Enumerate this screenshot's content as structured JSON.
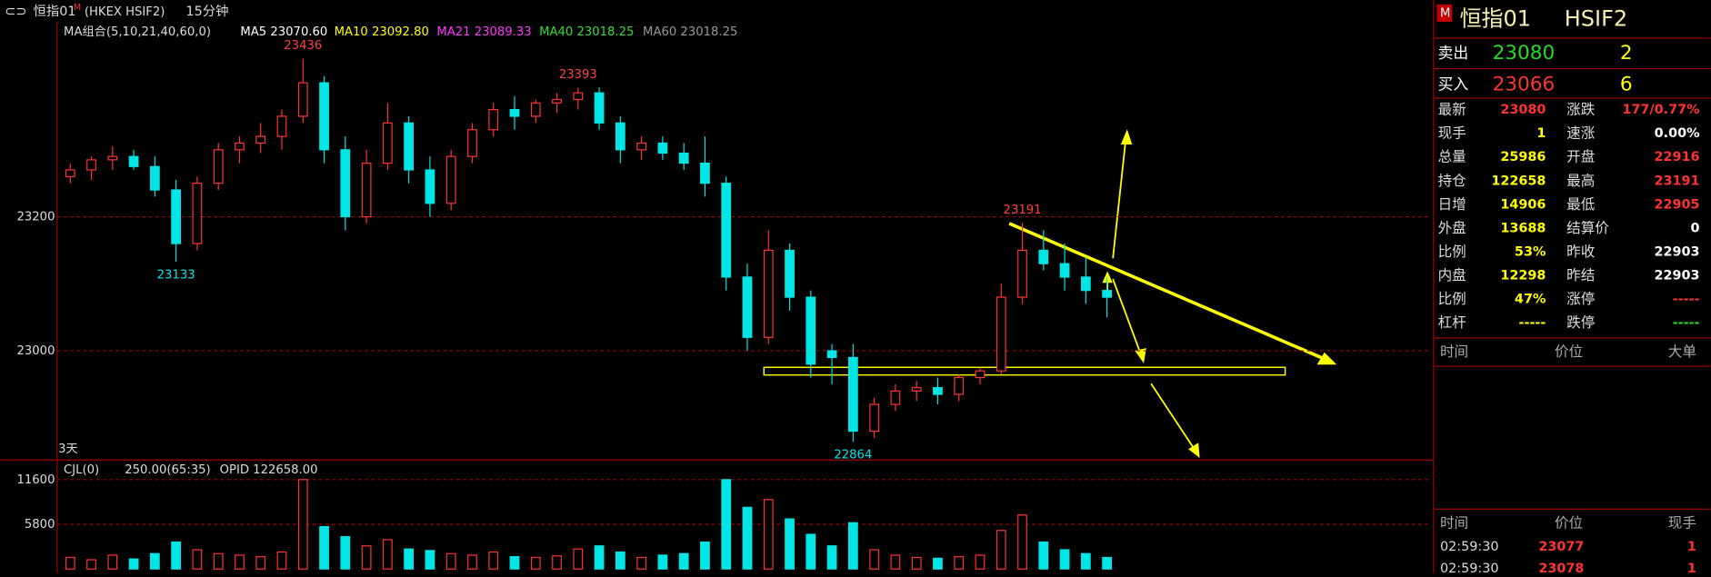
{
  "toolbar": {
    "symbol": "恒指01",
    "flag": "M",
    "exchange": "(HKEX HSIF2)",
    "period": "15分钟"
  },
  "span_label": "3天",
  "chart_data": [
    {
      "type": "candlestick",
      "up_color": "#ff3232",
      "down_color": "#00e5e5",
      "grid": true,
      "ylim": [
        22837,
        23491
      ],
      "yticks": [
        23000,
        23200
      ],
      "legend": [
        {
          "text": "MA组合(5,10,21,40,60,0)",
          "color": "#dddddd"
        },
        {
          "text": "MA5 23070.60",
          "color": "#ffffff"
        },
        {
          "text": "MA10 23092.80",
          "color": "#ffff00"
        },
        {
          "text": "MA21 23089.33",
          "color": "#ff33ff"
        },
        {
          "text": "MA40 23018.25",
          "color": "#33dd33"
        },
        {
          "text": "MA60 23018.25",
          "color": "#999999"
        }
      ],
      "high_labels": [
        23436,
        23393,
        23191
      ],
      "low_labels": [
        23133,
        22864
      ],
      "candles": [
        [
          23260,
          23280,
          23250,
          23270
        ],
        [
          23270,
          23290,
          23255,
          23285
        ],
        [
          23285,
          23305,
          23270,
          23290
        ],
        [
          23290,
          23300,
          23270,
          23275
        ],
        [
          23275,
          23290,
          23230,
          23240
        ],
        [
          23240,
          23255,
          23133,
          23160
        ],
        [
          23160,
          23260,
          23150,
          23250
        ],
        [
          23250,
          23310,
          23240,
          23300
        ],
        [
          23300,
          23320,
          23280,
          23310
        ],
        [
          23310,
          23340,
          23295,
          23320
        ],
        [
          23320,
          23360,
          23300,
          23350
        ],
        [
          23350,
          23436,
          23340,
          23400
        ],
        [
          23400,
          23410,
          23280,
          23300
        ],
        [
          23300,
          23320,
          23180,
          23200
        ],
        [
          23200,
          23300,
          23190,
          23280
        ],
        [
          23280,
          23370,
          23270,
          23340
        ],
        [
          23340,
          23350,
          23250,
          23270
        ],
        [
          23270,
          23290,
          23200,
          23220
        ],
        [
          23220,
          23300,
          23210,
          23290
        ],
        [
          23290,
          23340,
          23280,
          23330
        ],
        [
          23330,
          23370,
          23320,
          23360
        ],
        [
          23360,
          23380,
          23330,
          23350
        ],
        [
          23350,
          23375,
          23340,
          23370
        ],
        [
          23370,
          23385,
          23355,
          23375
        ],
        [
          23375,
          23393,
          23360,
          23385
        ],
        [
          23385,
          23393,
          23330,
          23340
        ],
        [
          23340,
          23350,
          23280,
          23300
        ],
        [
          23300,
          23320,
          23285,
          23310
        ],
        [
          23310,
          23320,
          23285,
          23295
        ],
        [
          23295,
          23310,
          23270,
          23280
        ],
        [
          23280,
          23320,
          23230,
          23250
        ],
        [
          23250,
          23260,
          23090,
          23110
        ],
        [
          23110,
          23130,
          23000,
          23020
        ],
        [
          23020,
          23180,
          23010,
          23150
        ],
        [
          23150,
          23160,
          23060,
          23080
        ],
        [
          23080,
          23090,
          22960,
          22980
        ],
        [
          23000,
          23010,
          22950,
          22990
        ],
        [
          22990,
          23010,
          22864,
          22880
        ],
        [
          22880,
          22930,
          22870,
          22920
        ],
        [
          22920,
          22950,
          22910,
          22940
        ],
        [
          22940,
          22955,
          22925,
          22945
        ],
        [
          22945,
          22960,
          22920,
          22935
        ],
        [
          22935,
          22965,
          22925,
          22960
        ],
        [
          22960,
          22975,
          22950,
          22970
        ],
        [
          22970,
          23100,
          22965,
          23080
        ],
        [
          23080,
          23191,
          23070,
          23150
        ],
        [
          23150,
          23180,
          23120,
          23130
        ],
        [
          23130,
          23160,
          23090,
          23110
        ],
        [
          23110,
          23140,
          23070,
          23090
        ],
        [
          23090,
          23110,
          23050,
          23080
        ]
      ]
    },
    {
      "type": "bar",
      "ylim": [
        0,
        13720
      ],
      "yticks": [
        5800,
        11600
      ],
      "legend": [
        {
          "text": "CJL(0)",
          "color": "#dddddd"
        },
        {
          "text": "250.00(65:35)",
          "color": "#dddddd"
        },
        {
          "text": "OPID 122658.00",
          "color": "#dddddd"
        }
      ],
      "values": [
        1500,
        1200,
        1800,
        1300,
        2000,
        3500,
        2500,
        2000,
        1800,
        1600,
        2200,
        11600,
        5500,
        4200,
        3000,
        3800,
        2600,
        2400,
        2000,
        1800,
        2200,
        1600,
        1500,
        1700,
        2600,
        3000,
        2200,
        1500,
        1800,
        2000,
        3500,
        11600,
        8000,
        9000,
        6500,
        4500,
        3000,
        6000,
        2500,
        1800,
        1500,
        1400,
        1600,
        1800,
        5000,
        7000,
        3500,
        2500,
        2000,
        1500
      ]
    }
  ],
  "panel": {
    "flag": "M",
    "name": "恒指01",
    "code": "HSIF2",
    "ask": [
      "卖出",
      "23080",
      "2"
    ],
    "bid": [
      "买入",
      "23066",
      "6"
    ],
    "stats": [
      [
        "最新",
        "23080",
        "涨跌",
        "177/0.77%"
      ],
      [
        "现手",
        "1",
        "速涨",
        "0.00%"
      ],
      [
        "总量",
        "25986",
        "开盘",
        "22916"
      ],
      [
        "持仓",
        "122658",
        "最高",
        "23191"
      ],
      [
        "日增",
        "14906",
        "最低",
        "22905"
      ],
      [
        "外盘",
        "13688",
        "结算价",
        "0"
      ],
      [
        "比例",
        "53%",
        "昨收",
        "22903"
      ],
      [
        "内盘",
        "12298",
        "昨结",
        "22903"
      ],
      [
        "比例",
        "47%",
        "涨停",
        "-----"
      ],
      [
        "杠杆",
        "-----",
        "跌停",
        "-----"
      ]
    ],
    "big_header": [
      "时间",
      "价位",
      "大单"
    ],
    "trade_header": [
      "时间",
      "价位",
      "现手"
    ],
    "trades": [
      [
        "02:59:30",
        "23077",
        "1"
      ],
      [
        "02:59:30",
        "23078",
        "1"
      ]
    ]
  }
}
